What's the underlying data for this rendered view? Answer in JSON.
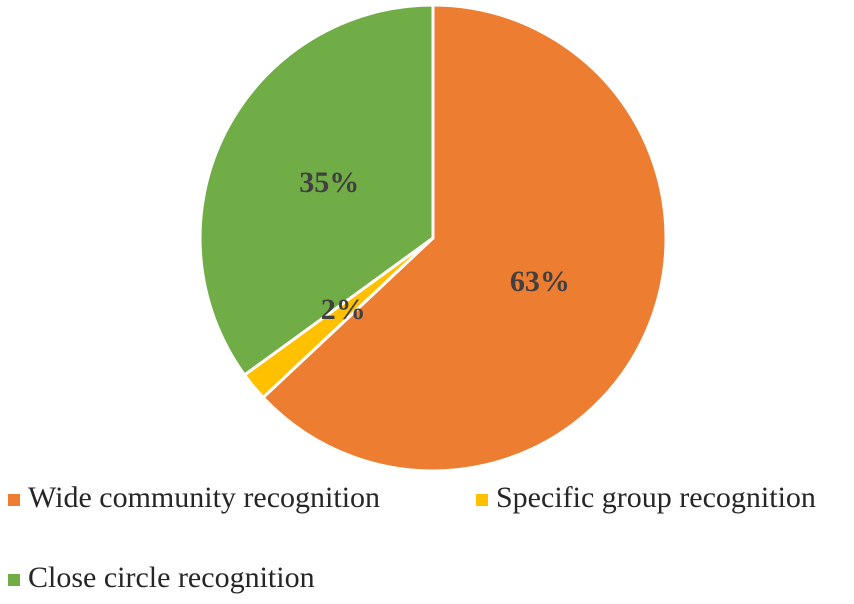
{
  "chart_data": {
    "type": "pie",
    "categories": [
      "Wide community recognition",
      "Specific group recognition",
      "Close circle recognition"
    ],
    "values": [
      63,
      2,
      35
    ],
    "value_labels": [
      "63%",
      "2%",
      "35%"
    ],
    "colors": [
      "#ed7d31",
      "#ffc000",
      "#70ad47"
    ]
  }
}
